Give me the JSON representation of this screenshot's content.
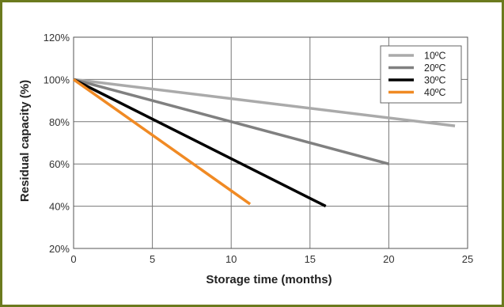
{
  "chart_data": {
    "type": "line",
    "xlabel": "Storage time (months)",
    "ylabel": "Residual capacity (%)",
    "xlim": [
      0,
      25
    ],
    "ylim": [
      20,
      120
    ],
    "x_ticks": [
      "0",
      "5",
      "10",
      "15",
      "20",
      "25"
    ],
    "y_ticks": [
      "20%",
      "40%",
      "60%",
      "80%",
      "100%",
      "120%"
    ],
    "grid": true,
    "legend_position": "top-right",
    "series": [
      {
        "name": "10ºC",
        "color": "#aaaaaa",
        "x": [
          0,
          24.2
        ],
        "y": [
          100,
          78
        ]
      },
      {
        "name": "20ºC",
        "color": "#808080",
        "x": [
          0,
          20
        ],
        "y": [
          100,
          60
        ]
      },
      {
        "name": "30ºC",
        "color": "#000000",
        "x": [
          0,
          16
        ],
        "y": [
          100,
          40
        ]
      },
      {
        "name": "40ºC",
        "color": "#f08a24",
        "x": [
          0,
          11.2
        ],
        "y": [
          100,
          41
        ]
      }
    ]
  },
  "frame": {
    "border_color": "#6b7a1e"
  }
}
